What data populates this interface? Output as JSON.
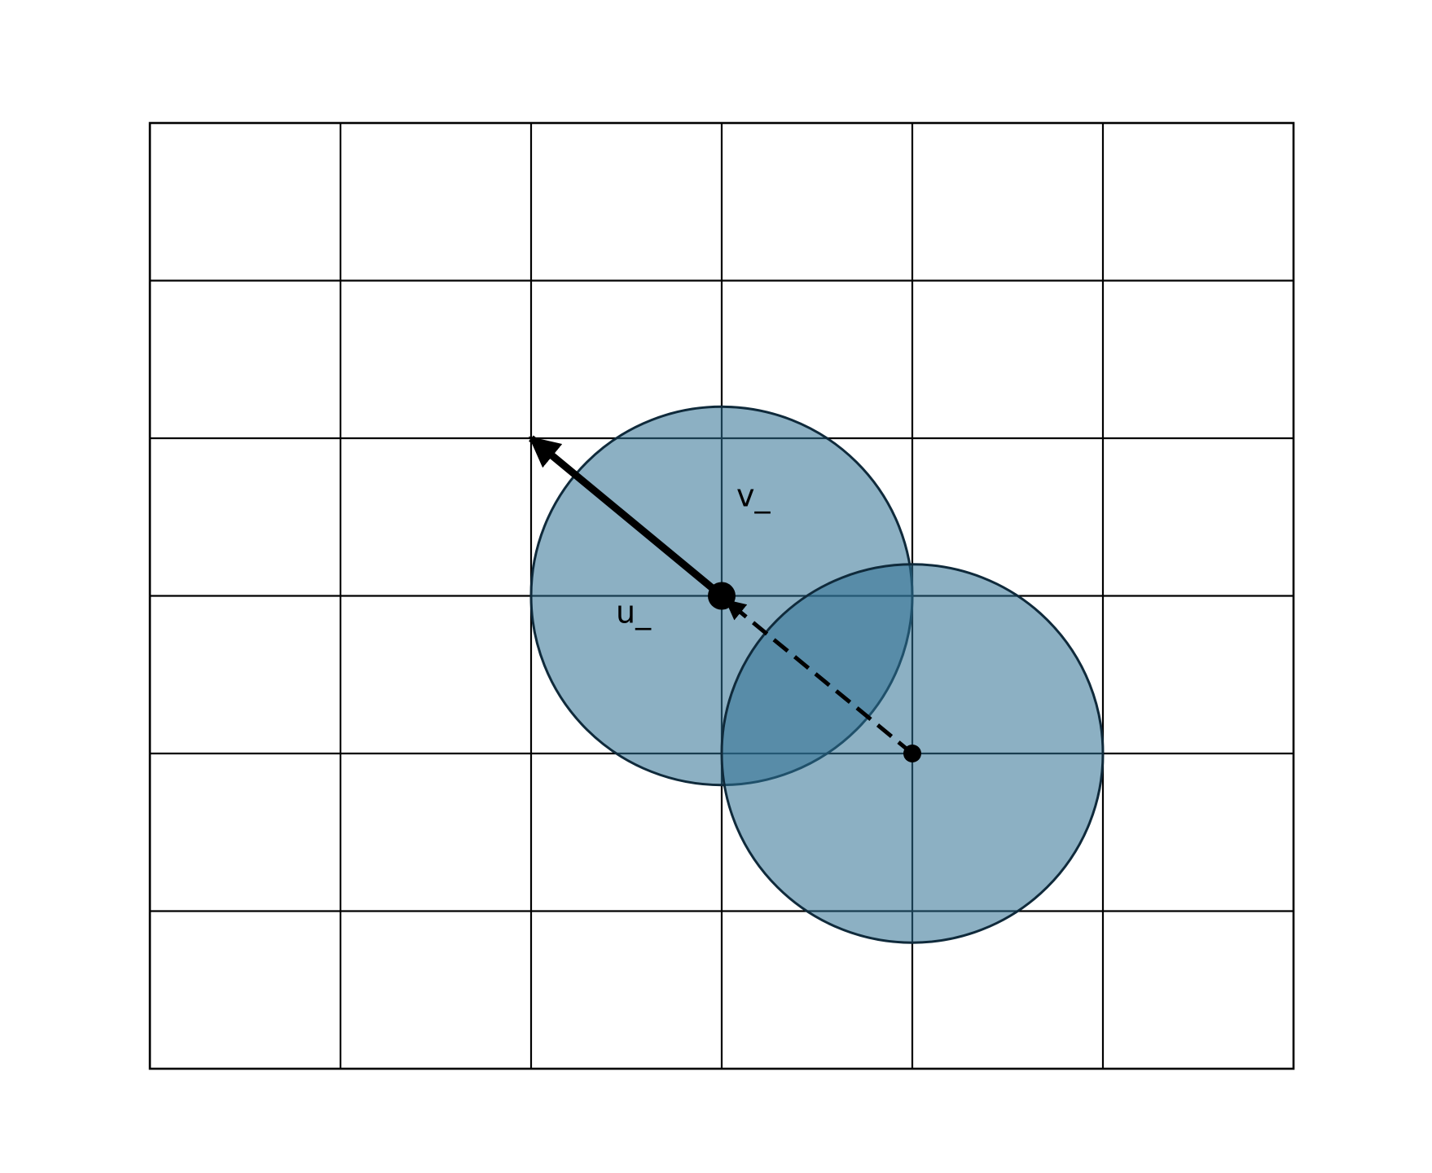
{
  "diagram": {
    "grid": {
      "columns": 6,
      "rows": 6
    },
    "colors": {
      "disk_fill": "#2e6f92",
      "disk_stroke": "#0f2a3b",
      "ink": "#000000"
    },
    "disks": [
      {
        "id": "disk-upper",
        "center_cell": [
          3,
          3
        ],
        "radius_cells": 1.0
      },
      {
        "id": "disk-lower",
        "center_cell": [
          4,
          2
        ],
        "radius_cells": 1.0
      }
    ],
    "vectors": [
      {
        "id": "u",
        "label": "u_",
        "from_cell": [
          3,
          3
        ],
        "to_cell": [
          2,
          4
        ],
        "style": "solid"
      },
      {
        "id": "v",
        "label": "v_",
        "from_cell": [
          4,
          2
        ],
        "to_cell": [
          3,
          3
        ],
        "style": "dashed"
      }
    ]
  }
}
